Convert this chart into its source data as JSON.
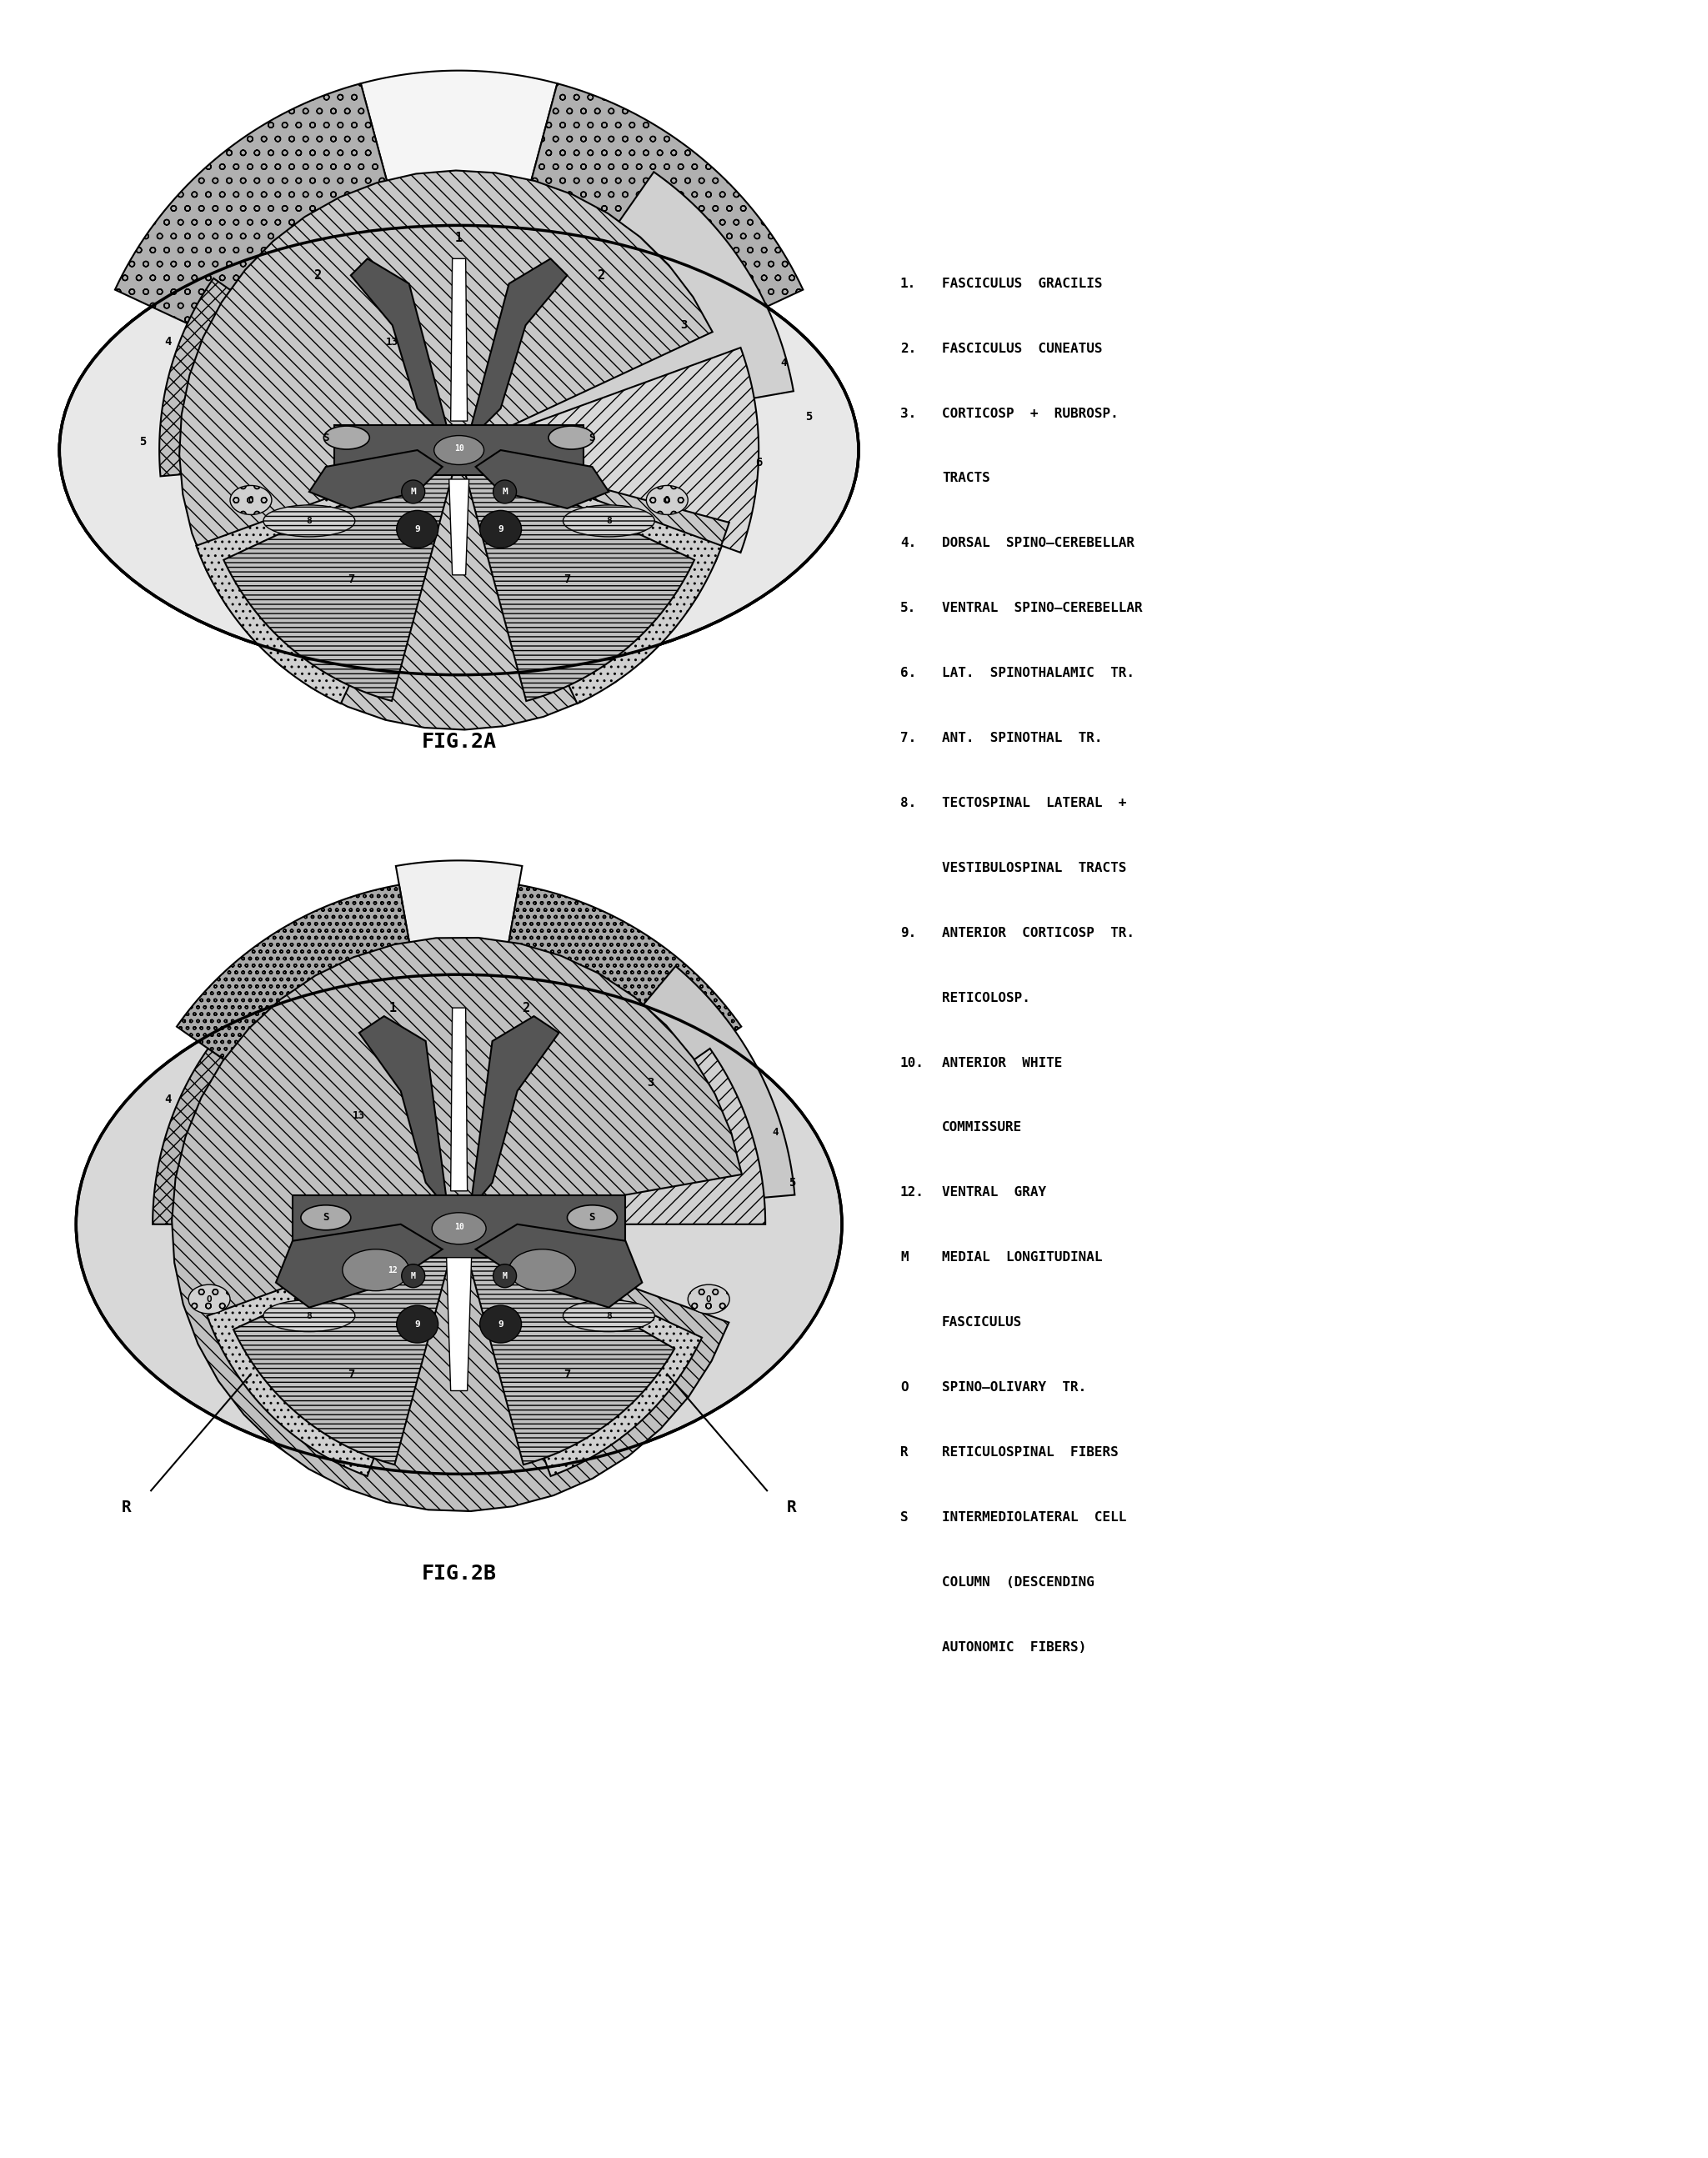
{
  "fig_width": 20.49,
  "fig_height": 25.89,
  "background_color": "#ffffff",
  "legend_items": [
    {
      "num": "1.",
      "text": "FASCICULUS  GRACILIS"
    },
    {
      "num": "2.",
      "text": "FASCICULUS  CUNEATUS"
    },
    {
      "num": "3.",
      "text": "CORTICOSP  +  RUBROSP."
    },
    {
      "num": "",
      "text": "TRACTS"
    },
    {
      "num": "4.",
      "text": "DORSAL  SPINO–CEREBELLAR"
    },
    {
      "num": "5.",
      "text": "VENTRAL  SPINO–CEREBELLAR"
    },
    {
      "num": "6.",
      "text": "LAT.  SPINOTHALAMIC  TR."
    },
    {
      "num": "7.",
      "text": "ANT.  SPINOTHAL  TR."
    },
    {
      "num": "8.",
      "text": "TECTOSPINAL  LATERAL  +"
    },
    {
      "num": "",
      "text": "VESTIBULOSPINAL  TRACTS"
    },
    {
      "num": "9.",
      "text": "ANTERIOR  CORTICOSP  TR."
    },
    {
      "num": "",
      "text": "RETICOLOSP."
    },
    {
      "num": "10.",
      "text": "ANTERIOR  WHITE"
    },
    {
      "num": "",
      "text": "COMMISSURE"
    },
    {
      "num": "12.",
      "text": "VENTRAL  GRAY"
    },
    {
      "num": "M",
      "text": "MEDIAL  LONGITUDINAL"
    },
    {
      "num": "",
      "text": "FASCICULUS"
    },
    {
      "num": "O",
      "text": "SPINO–OLIVARY  TR."
    },
    {
      "num": "R",
      "text": "RETICULOSPINAL  FIBERS"
    },
    {
      "num": "S",
      "text": "INTERMEDIOLATERAL  CELL"
    },
    {
      "num": "",
      "text": "COLUMN  (DESCENDING"
    },
    {
      "num": "",
      "text": "AUTONOMIC  FIBERS)"
    }
  ],
  "fig2a_label": "FIG.2A",
  "fig2b_label": "FIG.2B"
}
